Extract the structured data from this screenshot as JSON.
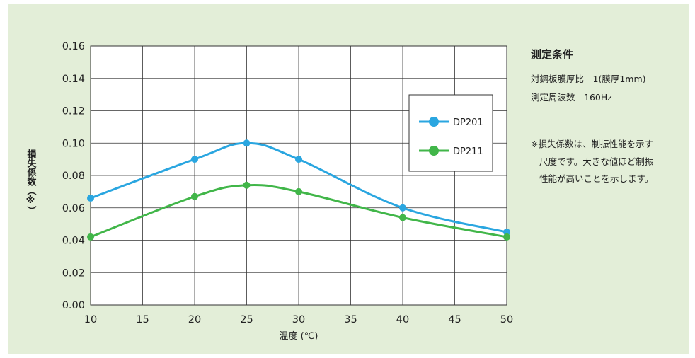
{
  "colors": {
    "panel_bg": "#e3eed8",
    "plot_bg": "#ffffff",
    "grid": "#333333",
    "dp201": "#2aa6e0",
    "dp211": "#41b649"
  },
  "conditions": {
    "title": "測定条件",
    "line1": "対鋼板膜厚比　1(膜厚1mm)",
    "line2": "測定周波数　160Hz"
  },
  "note": {
    "line1": "※損失係数は、制振性能を示す",
    "line2": "尺度です。大きな値ほど制振",
    "line3": "性能が高いことを示します。"
  },
  "chart_data": {
    "type": "line",
    "xlabel": "温度 (℃)",
    "ylabel": "損失係数（※）",
    "xlim": [
      10,
      50
    ],
    "ylim": [
      0,
      0.16
    ],
    "x_ticks": [
      "10",
      "15",
      "20",
      "25",
      "30",
      "35",
      "40",
      "45",
      "50"
    ],
    "y_ticks": [
      "0.00",
      "0.02",
      "0.04",
      "0.06",
      "0.08",
      "0.10",
      "0.12",
      "0.14",
      "0.16"
    ],
    "grid": true,
    "legend_position": "right-middle",
    "series": [
      {
        "name": "DP201",
        "color": "#2aa6e0",
        "x": [
          10,
          20,
          25,
          30,
          40,
          50
        ],
        "y": [
          0.066,
          0.09,
          0.1,
          0.09,
          0.06,
          0.045
        ]
      },
      {
        "name": "DP211",
        "color": "#41b649",
        "x": [
          10,
          20,
          25,
          30,
          40,
          50
        ],
        "y": [
          0.042,
          0.067,
          0.074,
          0.07,
          0.054,
          0.042
        ]
      }
    ]
  }
}
